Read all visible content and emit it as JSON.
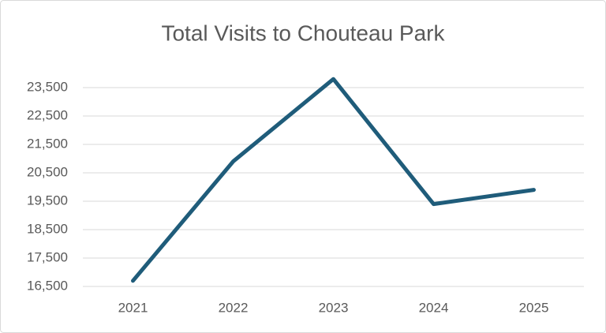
{
  "chart_data": {
    "type": "line",
    "title": "Total Visits to Chouteau Park",
    "categories": [
      "2021",
      "2022",
      "2023",
      "2024",
      "2025"
    ],
    "series": [
      {
        "name": "Total Visits",
        "color": "#1f5c7a",
        "values": [
          16700,
          20900,
          23800,
          19400,
          19900
        ]
      }
    ],
    "ylim": [
      16500,
      23500
    ],
    "yticks": [
      {
        "value": 16500,
        "label": "16,500"
      },
      {
        "value": 17500,
        "label": "17,500"
      },
      {
        "value": 18500,
        "label": "18,500"
      },
      {
        "value": 19500,
        "label": "19,500"
      },
      {
        "value": 20500,
        "label": "20,500"
      },
      {
        "value": 21500,
        "label": "21,500"
      },
      {
        "value": 22500,
        "label": "22,500"
      },
      {
        "value": 23500,
        "label": "23,500"
      }
    ],
    "grid": true
  }
}
